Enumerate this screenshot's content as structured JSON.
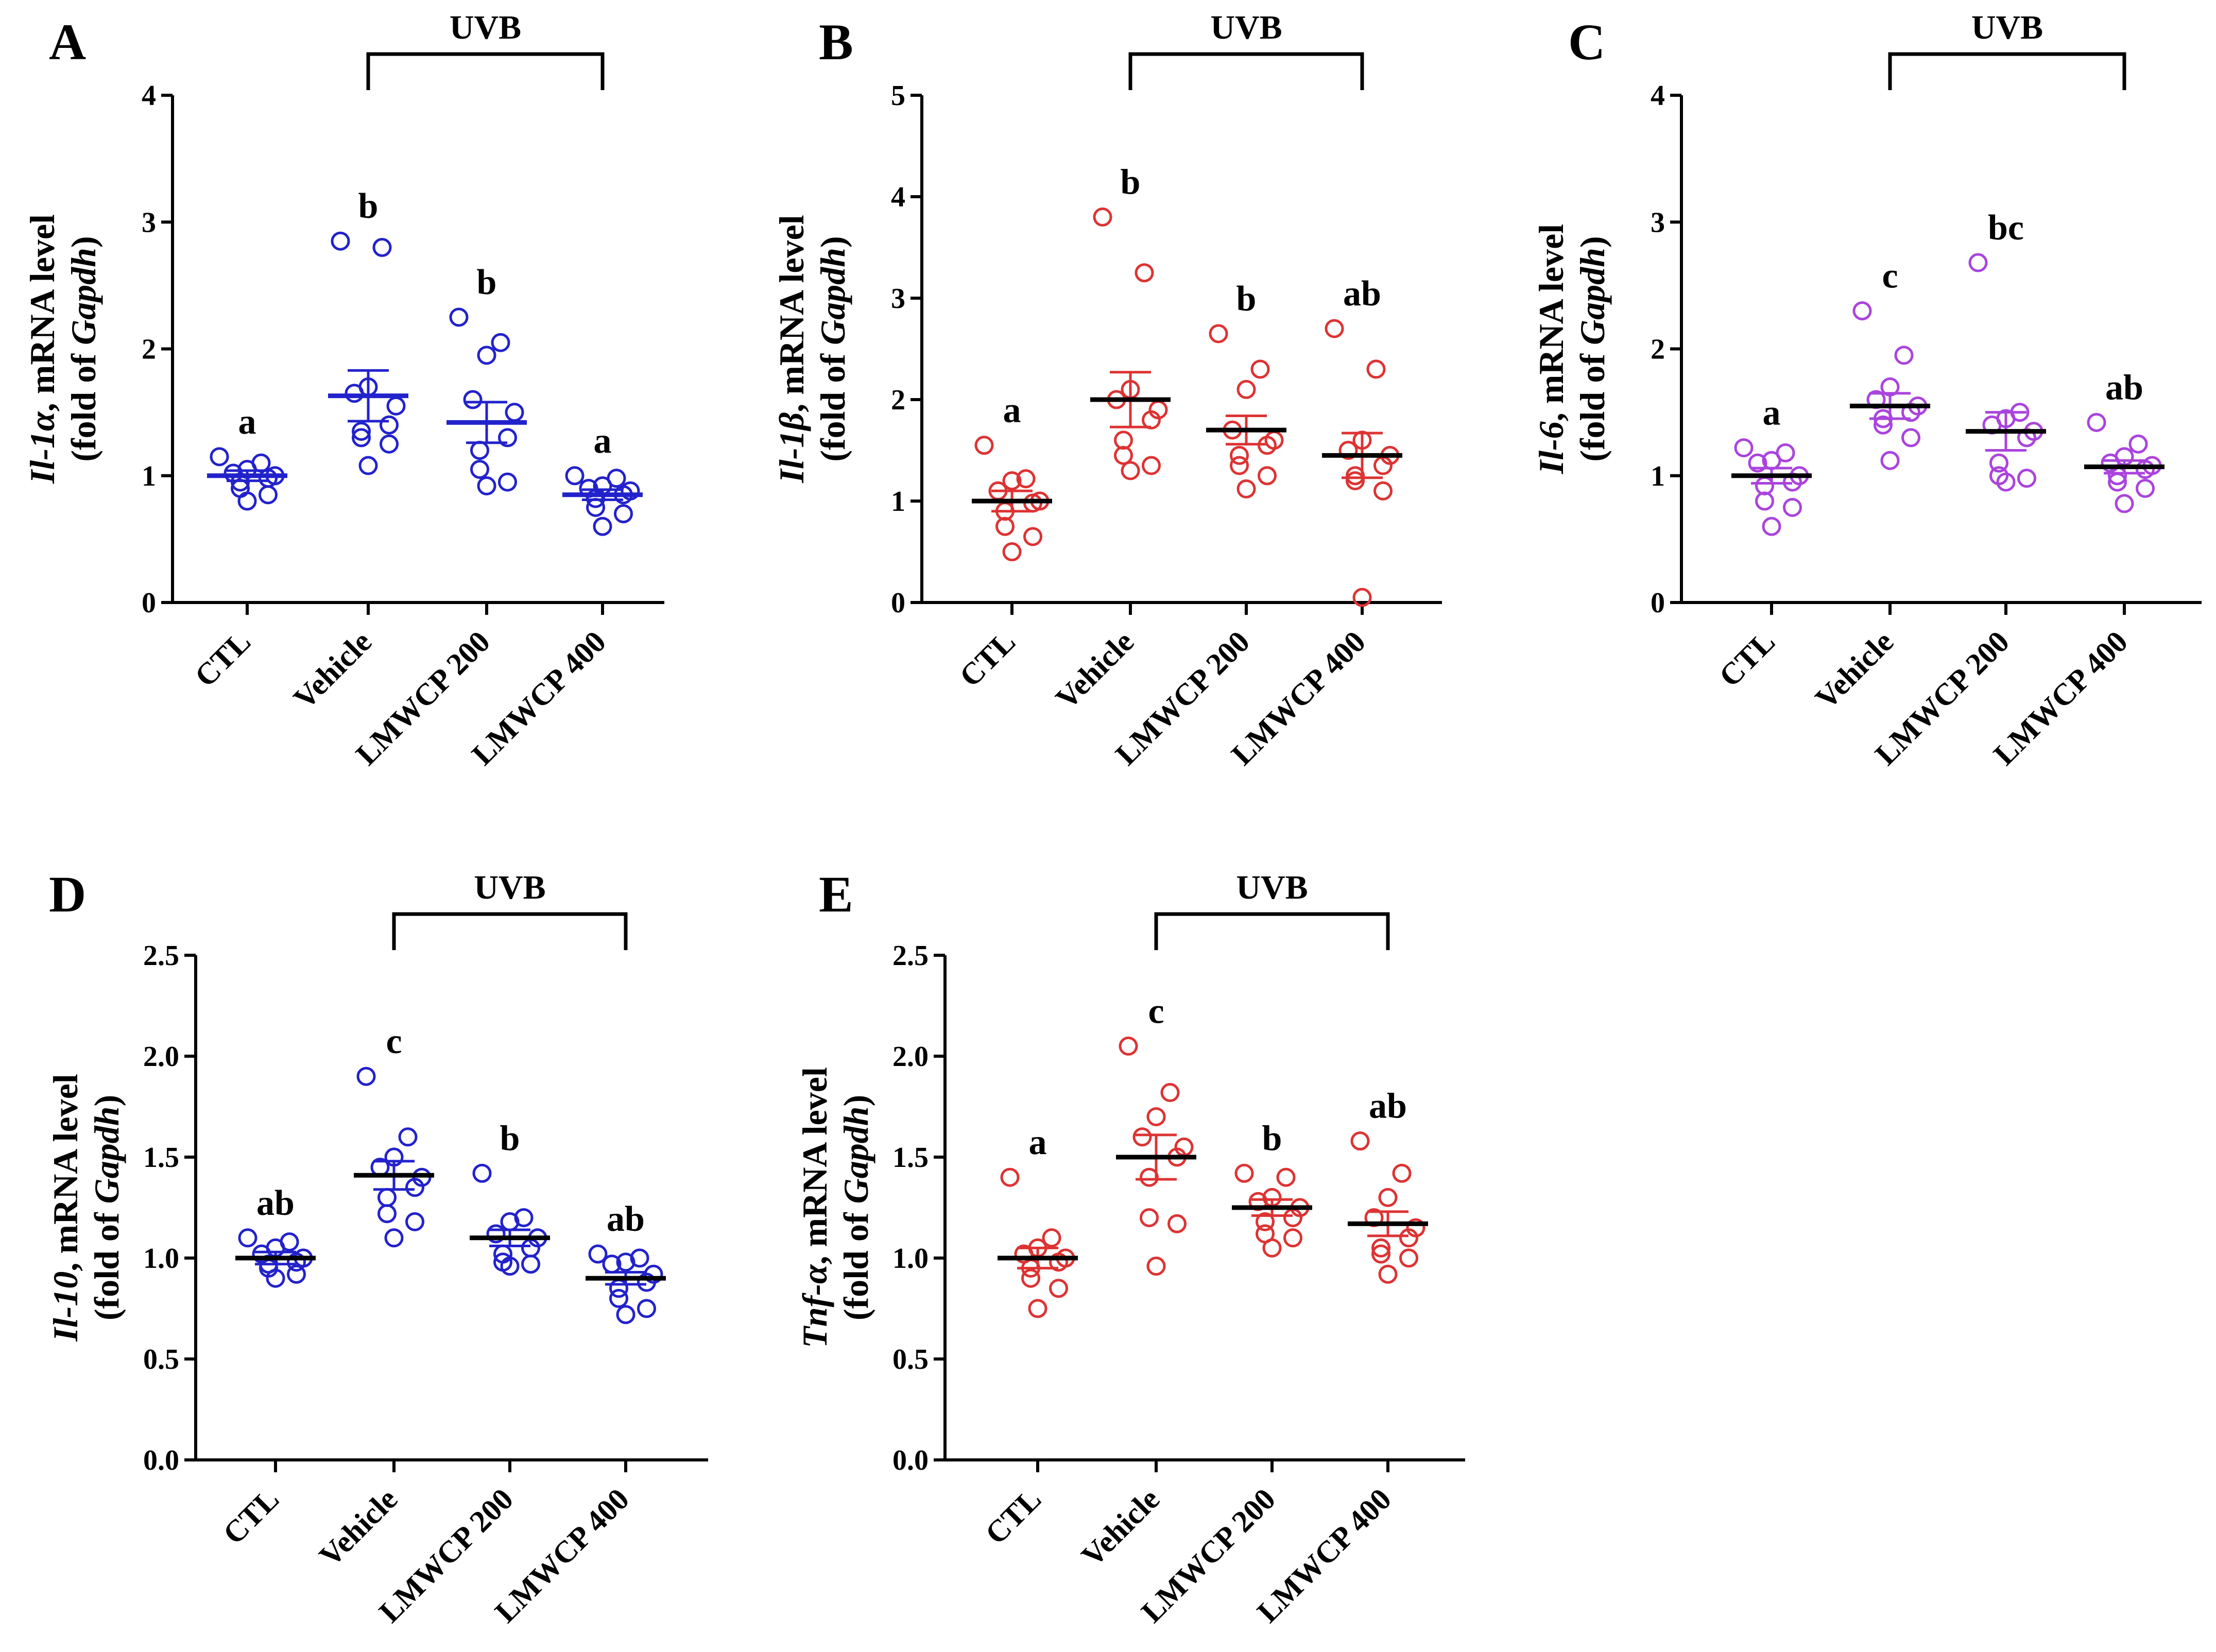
{
  "figure": {
    "bracket_label": "UVB",
    "categories": [
      "CTL",
      "Vehicle",
      "LMWCP 200",
      "LMWCP 400"
    ],
    "ylabel_line2_prefix": "(fold of ",
    "ylabel_line2_gene": "Gapdh",
    "ylabel_line2_suffix": ")",
    "ylabel_suffix": ", mRNA level"
  },
  "chart_data": [
    {
      "panel": "A",
      "type": "scatter",
      "gene": "Il-1α",
      "color": "#2222cc",
      "ylim": [
        0,
        4
      ],
      "yticks": [
        "0",
        "1",
        "2",
        "3",
        "4"
      ],
      "tick_values": [
        0,
        1,
        2,
        3,
        4
      ],
      "groups": [
        {
          "name": "CTL",
          "mean": 1.0,
          "sem": 0.04,
          "mean_color": "#2222cc",
          "letter": "a",
          "points": [
            1.15,
            1.1,
            1.05,
            1.02,
            1.0,
            0.98,
            0.95,
            0.9,
            0.85,
            0.8
          ]
        },
        {
          "name": "Vehicle",
          "mean": 1.63,
          "sem": 0.2,
          "mean_color": "#2222cc",
          "letter": "b",
          "points": [
            2.85,
            2.8,
            1.7,
            1.65,
            1.55,
            1.4,
            1.35,
            1.3,
            1.25,
            1.08
          ]
        },
        {
          "name": "LMWCP 200",
          "mean": 1.42,
          "sem": 0.16,
          "mean_color": "#2222cc",
          "letter": "b",
          "points": [
            2.25,
            2.05,
            1.95,
            1.6,
            1.5,
            1.3,
            1.2,
            1.05,
            0.95,
            0.92
          ]
        },
        {
          "name": "LMWCP 400",
          "mean": 0.85,
          "sem": 0.04,
          "mean_color": "#2222cc",
          "letter": "a",
          "points": [
            1.0,
            0.98,
            0.92,
            0.9,
            0.88,
            0.85,
            0.82,
            0.75,
            0.7,
            0.6
          ]
        }
      ]
    },
    {
      "panel": "B",
      "type": "scatter",
      "gene": "Il-1β",
      "color": "#dd3333",
      "ylim": [
        0,
        5
      ],
      "yticks": [
        "0",
        "1",
        "2",
        "3",
        "4",
        "5"
      ],
      "tick_values": [
        0,
        1,
        2,
        3,
        4,
        5
      ],
      "groups": [
        {
          "name": "CTL",
          "mean": 1.0,
          "sem": 0.1,
          "mean_color": "#000000",
          "letter": "a",
          "points": [
            1.55,
            1.22,
            1.2,
            1.1,
            1.0,
            0.98,
            0.9,
            0.75,
            0.65,
            0.5
          ]
        },
        {
          "name": "Vehicle",
          "mean": 2.0,
          "sem": 0.27,
          "mean_color": "#000000",
          "letter": "b",
          "points": [
            3.8,
            3.25,
            2.1,
            2.0,
            1.9,
            1.8,
            1.6,
            1.45,
            1.35,
            1.3
          ]
        },
        {
          "name": "LMWCP 200",
          "mean": 1.7,
          "sem": 0.14,
          "mean_color": "#000000",
          "letter": "b",
          "points": [
            2.65,
            2.3,
            2.1,
            1.7,
            1.6,
            1.55,
            1.45,
            1.35,
            1.25,
            1.12
          ]
        },
        {
          "name": "LMWCP 400",
          "mean": 1.45,
          "sem": 0.22,
          "mean_color": "#000000",
          "letter": "ab",
          "points": [
            2.7,
            2.3,
            1.6,
            1.5,
            1.45,
            1.35,
            1.25,
            1.2,
            1.1,
            0.05
          ]
        }
      ]
    },
    {
      "panel": "C",
      "type": "scatter",
      "gene": "Il-6",
      "color": "#aa44dd",
      "ylim": [
        0,
        4
      ],
      "yticks": [
        "0",
        "1",
        "2",
        "3",
        "4"
      ],
      "tick_values": [
        0,
        1,
        2,
        3,
        4
      ],
      "groups": [
        {
          "name": "CTL",
          "mean": 1.0,
          "sem": 0.06,
          "mean_color": "#000000",
          "letter": "a",
          "points": [
            1.22,
            1.18,
            1.12,
            1.1,
            1.0,
            0.95,
            0.92,
            0.8,
            0.75,
            0.6
          ]
        },
        {
          "name": "Vehicle",
          "mean": 1.55,
          "sem": 0.1,
          "mean_color": "#000000",
          "letter": "c",
          "points": [
            2.3,
            1.95,
            1.7,
            1.6,
            1.55,
            1.5,
            1.45,
            1.4,
            1.3,
            1.12
          ]
        },
        {
          "name": "LMWCP 200",
          "mean": 1.35,
          "sem": 0.15,
          "mean_color": "#000000",
          "letter": "bc",
          "points": [
            2.68,
            1.5,
            1.45,
            1.4,
            1.35,
            1.3,
            1.1,
            1.0,
            0.98,
            0.95
          ]
        },
        {
          "name": "LMWCP 400",
          "mean": 1.07,
          "sem": 0.05,
          "mean_color": "#000000",
          "letter": "ab",
          "points": [
            1.42,
            1.25,
            1.15,
            1.1,
            1.08,
            1.05,
            1.0,
            0.95,
            0.9,
            0.78
          ]
        }
      ]
    },
    {
      "panel": "D",
      "type": "scatter",
      "gene": "Il-10",
      "color": "#2222cc",
      "ylim": [
        0,
        2.5
      ],
      "yticks": [
        "0.0",
        "0.5",
        "1.0",
        "1.5",
        "2.0",
        "2.5"
      ],
      "tick_values": [
        0,
        0.5,
        1.0,
        1.5,
        2.0,
        2.5
      ],
      "groups": [
        {
          "name": "CTL",
          "mean": 1.0,
          "sem": 0.03,
          "mean_color": "#000000",
          "letter": "ab",
          "points": [
            1.1,
            1.08,
            1.05,
            1.02,
            1.0,
            0.98,
            0.97,
            0.95,
            0.92,
            0.9
          ]
        },
        {
          "name": "Vehicle",
          "mean": 1.41,
          "sem": 0.07,
          "mean_color": "#000000",
          "letter": "c",
          "points": [
            1.9,
            1.6,
            1.5,
            1.45,
            1.4,
            1.35,
            1.3,
            1.22,
            1.18,
            1.1
          ]
        },
        {
          "name": "LMWCP 200",
          "mean": 1.1,
          "sem": 0.04,
          "mean_color": "#000000",
          "letter": "b",
          "points": [
            1.42,
            1.2,
            1.18,
            1.12,
            1.1,
            1.05,
            1.02,
            0.98,
            0.97,
            0.96
          ]
        },
        {
          "name": "LMWCP 400",
          "mean": 0.9,
          "sem": 0.03,
          "mean_color": "#000000",
          "letter": "ab",
          "points": [
            1.02,
            1.0,
            0.98,
            0.97,
            0.92,
            0.88,
            0.85,
            0.8,
            0.75,
            0.72
          ]
        }
      ]
    },
    {
      "panel": "E",
      "type": "scatter",
      "gene": "Tnf-α",
      "color": "#dd3333",
      "ylim": [
        0,
        2.5
      ],
      "yticks": [
        "0.0",
        "0.5",
        "1.0",
        "1.5",
        "2.0",
        "2.5"
      ],
      "tick_values": [
        0,
        0.5,
        1.0,
        1.5,
        2.0,
        2.5
      ],
      "groups": [
        {
          "name": "CTL",
          "mean": 1.0,
          "sem": 0.05,
          "mean_color": "#000000",
          "letter": "a",
          "points": [
            1.4,
            1.1,
            1.05,
            1.02,
            1.0,
            0.98,
            0.95,
            0.9,
            0.85,
            0.75
          ]
        },
        {
          "name": "Vehicle",
          "mean": 1.5,
          "sem": 0.11,
          "mean_color": "#000000",
          "letter": "c",
          "points": [
            2.05,
            1.82,
            1.7,
            1.6,
            1.55,
            1.5,
            1.4,
            1.2,
            1.17,
            0.96
          ]
        },
        {
          "name": "LMWCP 200",
          "mean": 1.25,
          "sem": 0.04,
          "mean_color": "#000000",
          "letter": "b",
          "points": [
            1.42,
            1.4,
            1.3,
            1.28,
            1.25,
            1.2,
            1.18,
            1.12,
            1.1,
            1.05
          ]
        },
        {
          "name": "LMWCP 400",
          "mean": 1.17,
          "sem": 0.06,
          "mean_color": "#000000",
          "letter": "ab",
          "points": [
            1.58,
            1.42,
            1.3,
            1.2,
            1.15,
            1.1,
            1.05,
            1.02,
            1.0,
            0.92
          ]
        }
      ]
    }
  ]
}
